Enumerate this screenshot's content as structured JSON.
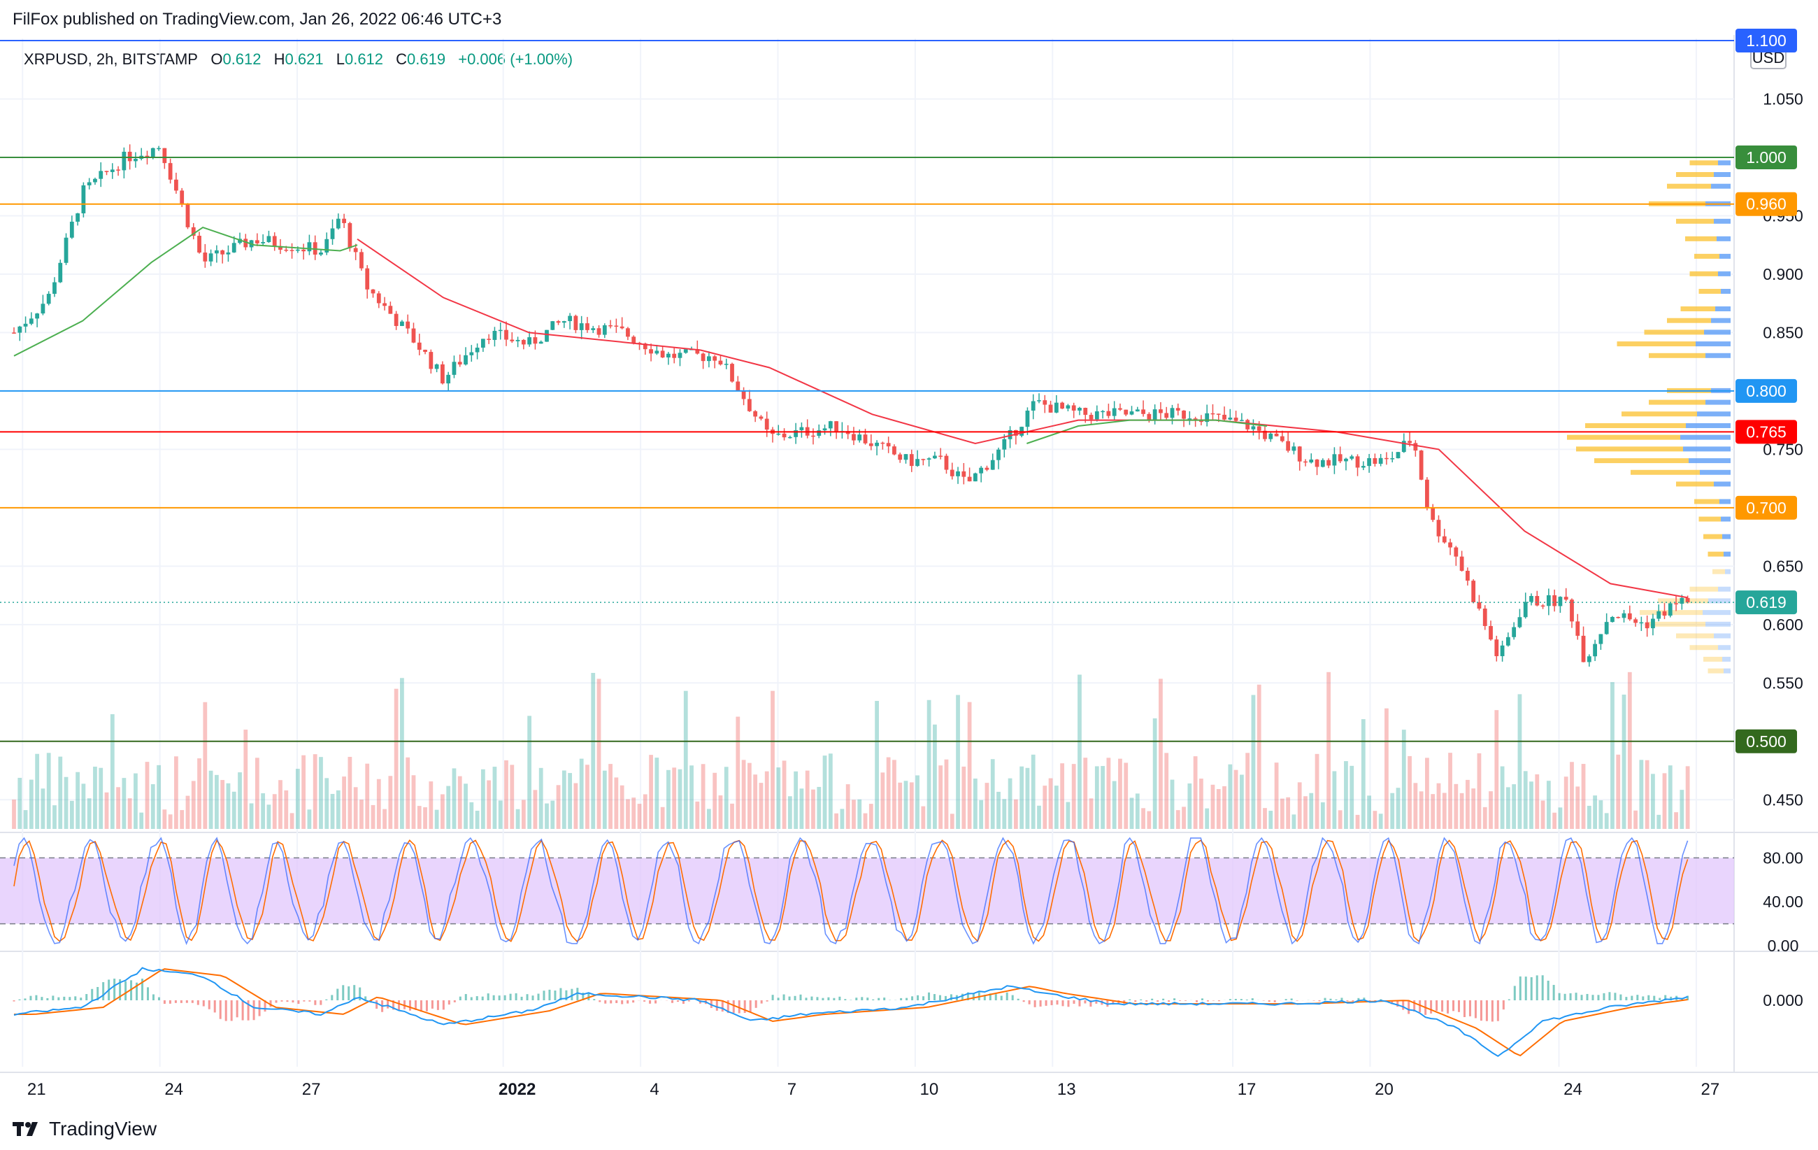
{
  "header": {
    "published": "FilFox published on TradingView.com, Jan 26, 2022 06:46 UTC+3"
  },
  "legend": {
    "symbol": "XRPUSD, 2h, BITSTAMP",
    "o_label": "O",
    "o_value": "0.612",
    "h_label": "H",
    "h_value": "0.621",
    "l_label": "L",
    "l_value": "0.612",
    "c_label": "C",
    "c_value": "0.619",
    "change": "+0.006 (+1.00%)"
  },
  "footer": {
    "brand": "TradingView"
  },
  "colors": {
    "up": "#26a69a",
    "down": "#ef5350",
    "ma_red": "#f23645",
    "ma_green": "#4caf50",
    "stoch_k": "#2962ff",
    "stoch_d": "#ff6d00",
    "stoch_band": "#e1c7fc",
    "macd_line": "#2196f3",
    "signal_line": "#ff6d00",
    "vp_blue": "#5b9cf6",
    "vp_yellow": "#fbc02d"
  },
  "chart_data": {
    "type": "candlestick",
    "currency": "USD",
    "price_axis_ticks": [
      "1.050",
      "0.950",
      "0.900",
      "0.850",
      "0.750",
      "0.650",
      "0.600",
      "0.550",
      "0.450"
    ],
    "ylim": [
      0.425,
      1.1
    ],
    "time_axis_ticks": [
      "21",
      "24",
      "27",
      "2022",
      "4",
      "7",
      "10",
      "13",
      "17",
      "20",
      "24",
      "27"
    ],
    "last_price": 0.619,
    "levels": [
      {
        "price": 1.1,
        "label": "1.100",
        "color": "#2962ff"
      },
      {
        "price": 1.0,
        "label": "1.000",
        "color": "#388e3c"
      },
      {
        "price": 0.96,
        "label": "0.960",
        "color": "#ff9800"
      },
      {
        "price": 0.8,
        "label": "0.800",
        "color": "#2196f3"
      },
      {
        "price": 0.765,
        "label": "0.765",
        "color": "#ff0000"
      },
      {
        "price": 0.7,
        "label": "0.700",
        "color": "#ff9800"
      },
      {
        "price": 0.5,
        "label": "0.500",
        "color": "#33691e"
      }
    ],
    "price_path": [
      [
        0,
        0.85
      ],
      [
        0.02,
        0.88
      ],
      [
        0.04,
        0.97
      ],
      [
        0.065,
        1.0
      ],
      [
        0.085,
        1.01
      ],
      [
        0.11,
        0.91
      ],
      [
        0.14,
        0.93
      ],
      [
        0.18,
        0.92
      ],
      [
        0.19,
        0.95
      ],
      [
        0.205,
        0.89
      ],
      [
        0.235,
        0.84
      ],
      [
        0.25,
        0.81
      ],
      [
        0.275,
        0.85
      ],
      [
        0.3,
        0.84
      ],
      [
        0.32,
        0.86
      ],
      [
        0.355,
        0.85
      ],
      [
        0.38,
        0.83
      ],
      [
        0.41,
        0.83
      ],
      [
        0.44,
        0.76
      ],
      [
        0.48,
        0.77
      ],
      [
        0.52,
        0.74
      ],
      [
        0.54,
        0.74
      ],
      [
        0.555,
        0.72
      ],
      [
        0.575,
        0.75
      ],
      [
        0.595,
        0.79
      ],
      [
        0.62,
        0.78
      ],
      [
        0.65,
        0.78
      ],
      [
        0.69,
        0.78
      ],
      [
        0.72,
        0.77
      ],
      [
        0.755,
        0.74
      ],
      [
        0.8,
        0.74
      ],
      [
        0.815,
        0.76
      ],
      [
        0.825,
        0.69
      ],
      [
        0.84,
        0.66
      ],
      [
        0.865,
        0.57
      ],
      [
        0.88,
        0.62
      ],
      [
        0.905,
        0.62
      ],
      [
        0.915,
        0.57
      ],
      [
        0.93,
        0.61
      ],
      [
        0.95,
        0.6
      ],
      [
        0.97,
        0.62
      ],
      [
        0.975,
        0.619
      ]
    ],
    "ma_red_path": [
      [
        0.2,
        0.93
      ],
      [
        0.25,
        0.88
      ],
      [
        0.3,
        0.85
      ],
      [
        0.4,
        0.835
      ],
      [
        0.44,
        0.82
      ],
      [
        0.5,
        0.78
      ],
      [
        0.56,
        0.755
      ],
      [
        0.62,
        0.775
      ],
      [
        0.7,
        0.775
      ],
      [
        0.77,
        0.765
      ],
      [
        0.83,
        0.75
      ],
      [
        0.88,
        0.68
      ],
      [
        0.93,
        0.635
      ],
      [
        0.975,
        0.623
      ]
    ],
    "ma_green_path": [
      [
        0.0,
        0.83
      ],
      [
        0.04,
        0.86
      ],
      [
        0.08,
        0.91
      ],
      [
        0.11,
        0.94
      ],
      [
        0.14,
        0.925
      ],
      [
        0.19,
        0.92
      ],
      [
        0.2,
        0.925
      ]
    ],
    "ma_green_path_2": [
      [
        0.59,
        0.755
      ],
      [
        0.62,
        0.77
      ],
      [
        0.65,
        0.775
      ],
      [
        0.7,
        0.775
      ],
      [
        0.73,
        0.77
      ]
    ],
    "stoch_rsi": {
      "ticks": [
        "80.00",
        "40.00",
        "0.00"
      ],
      "upper": 80,
      "lower": 20
    },
    "macd": {
      "ticks": [
        "0.000"
      ]
    }
  }
}
